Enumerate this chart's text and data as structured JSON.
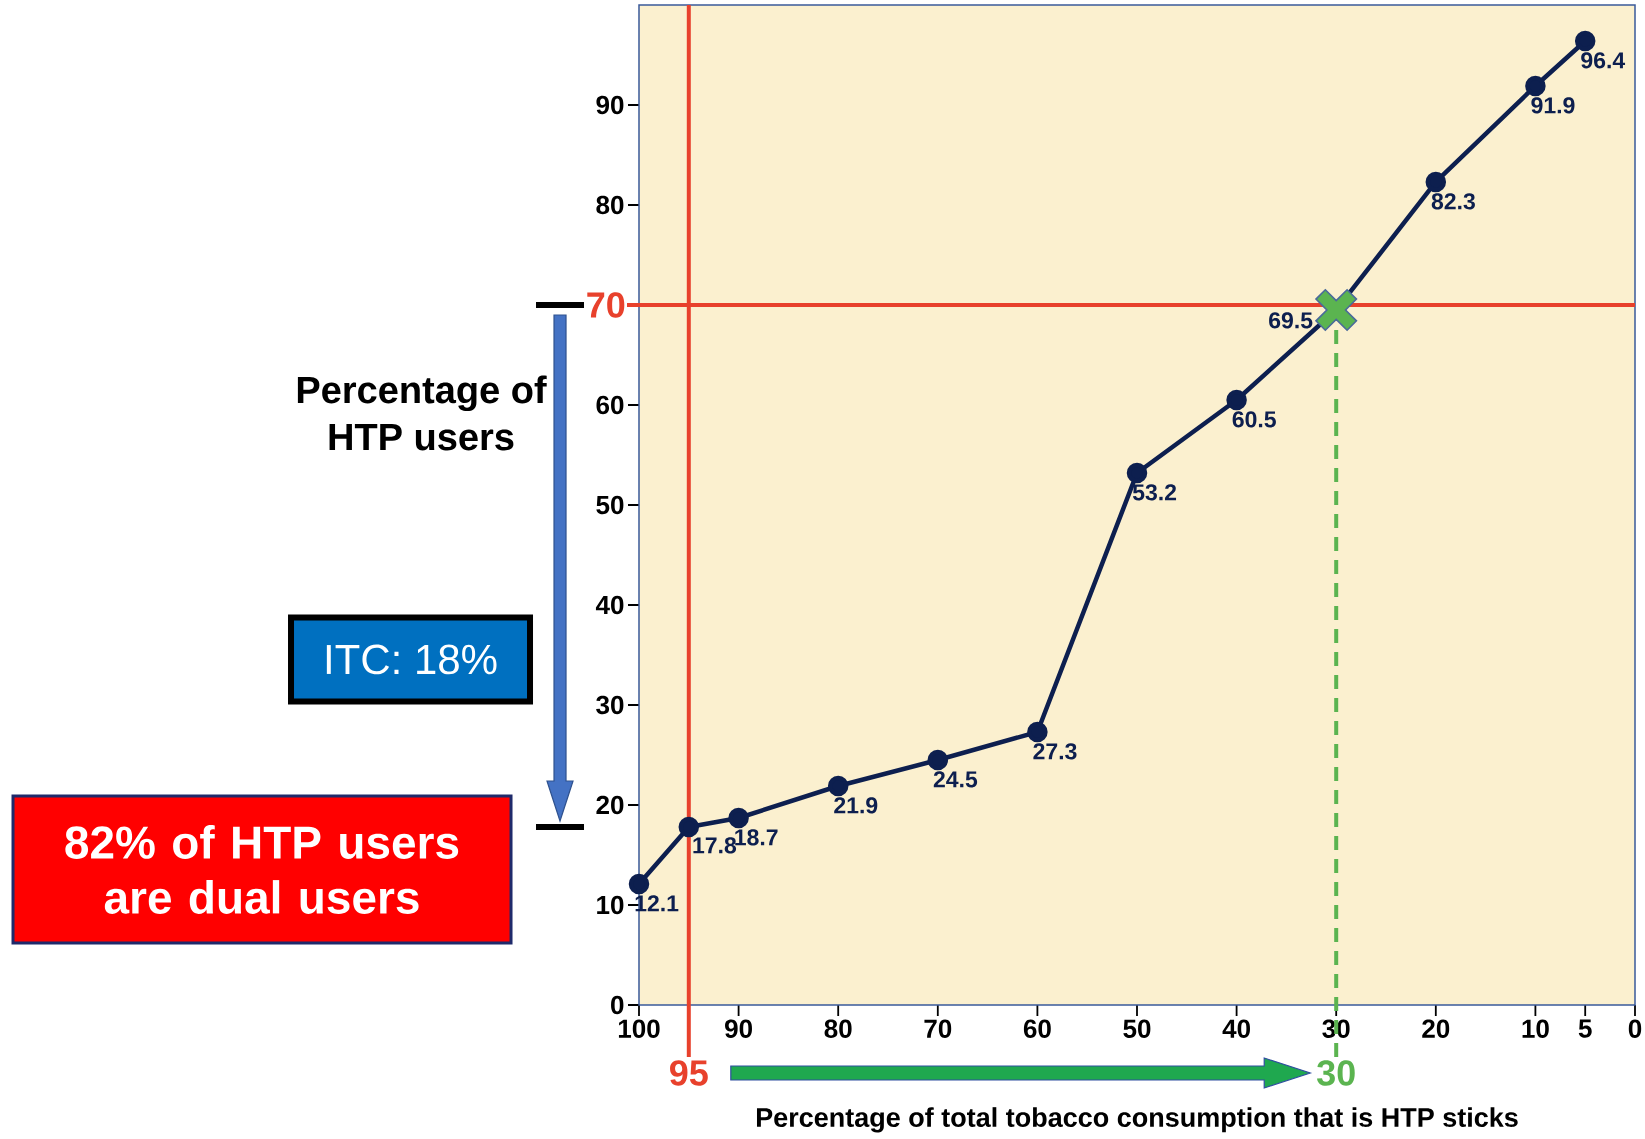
{
  "chart_data": {
    "type": "line",
    "xlabel": "Percentage of total tobacco consumption that is HTP sticks",
    "ylabel": "Percentage of HTP users",
    "annotations": [
      "82% of HTP users are dual users",
      "ITC: 18%"
    ],
    "series": [
      {
        "color": "#0d1f4f",
        "marker": "circle",
        "line_style": "solid",
        "x": [
          100,
          95,
          90,
          80,
          70,
          60,
          50,
          40,
          30,
          20,
          10,
          5
        ],
        "values": [
          12.1,
          17.8,
          18.7,
          21.9,
          24.5,
          27.3,
          53.2,
          60.5,
          69.5,
          82.3,
          91.9,
          96.4
        ],
        "value_labels": [
          "12.1",
          "17.8",
          "18.7",
          "21.9",
          "24.5",
          "27.3",
          "53.2",
          "60.5",
          "69.5",
          "82.3",
          "91.9",
          "96.4"
        ]
      },
      {
        "type": "scatter",
        "color": "#5bb450",
        "marker": "cross",
        "x": [
          30
        ],
        "values": [
          69.5
        ]
      }
    ],
    "xlim": [
      100,
      0
    ],
    "xticks": [
      100,
      90,
      80,
      70,
      60,
      50,
      40,
      30,
      20,
      10,
      5,
      0
    ],
    "ylim": [
      0,
      100
    ],
    "yticks": [
      0,
      10,
      20,
      30,
      40,
      50,
      60,
      {
        "value": 70,
        "label": null
      },
      80,
      90
    ],
    "ref_lines": [
      {
        "axis": "x",
        "value": 95,
        "label": "95",
        "color": "#e8412c",
        "line_style": "solid"
      },
      {
        "axis": "y",
        "value": 70,
        "label": "70",
        "color": "#e8412c",
        "line_style": "solid"
      },
      {
        "axis": "x",
        "value": 30,
        "label": "30",
        "color": "#5bb450",
        "line_style": "dashed"
      }
    ]
  }
}
